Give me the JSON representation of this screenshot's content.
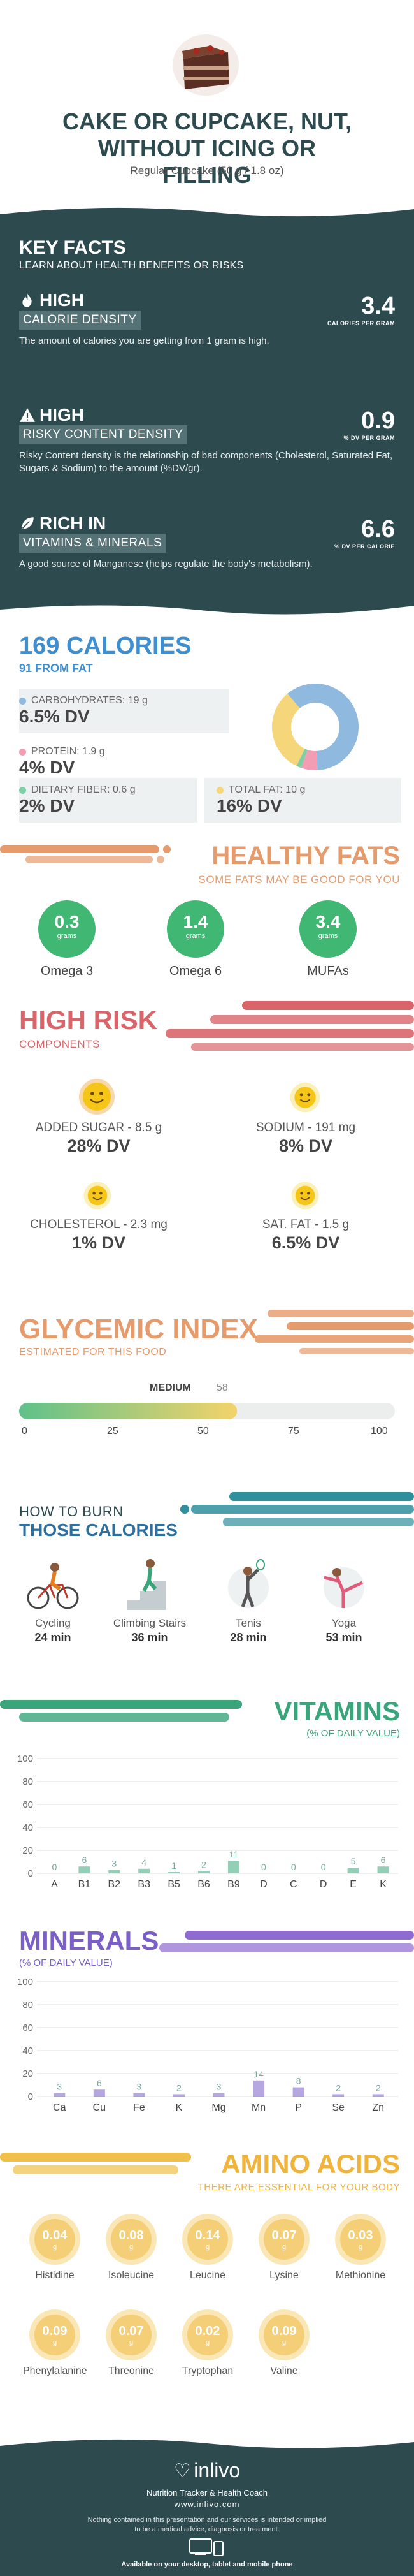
{
  "header": {
    "title_line1": "CAKE OR CUPCAKE, NUT,",
    "title_line2": "WITHOUT ICING OR",
    "title_line3": "FILLING",
    "serving": "Regular Cupcake (50 g / 1.8 oz)"
  },
  "key_facts": {
    "title": "KEY FACTS",
    "subtitle": "LEARN ABOUT HEALTH BENEFITS OR RISKS",
    "items": [
      {
        "level": "HIGH",
        "label": "CALORIE DENSITY",
        "value": "3.4",
        "unit": "CALORIES PER GRAM",
        "desc": "The amount of calories you are getting from 1 gram is high."
      },
      {
        "level": "HIGH",
        "label": "RISKY CONTENT DENSITY",
        "value": "0.9",
        "unit": "% DV PER GRAM",
        "desc": "Risky Content density is the relationship of bad components (Cholesterol, Saturated Fat, Sugars & Sodium) to the amount (%DV/gr)."
      },
      {
        "level": "RICH  IN",
        "label": "VITAMINS & MINERALS",
        "value": "6.6",
        "unit": "% DV PER CALORIE",
        "desc": "A good source of Manganese (helps regulate the body's metabolism)."
      }
    ]
  },
  "calories": {
    "title": "169 CALORIES",
    "subtitle": "91 FROM FAT",
    "nutrients": [
      {
        "label": "CARBOHYDRATES: 19 g",
        "dv": "6.5% DV",
        "color": "#8fb9de"
      },
      {
        "label": "PROTEIN: 1.9 g",
        "dv": "4% DV",
        "color": "#f29db4"
      },
      {
        "label": "DIETARY FIBER: 0.6 g",
        "dv": "2% DV",
        "color": "#7fcfa6"
      },
      {
        "label": "TOTAL FAT: 10 g",
        "dv": "16% DV",
        "color": "#f5d67a"
      }
    ],
    "donut": [
      {
        "name": "carbs",
        "value": 19,
        "color": "#8fb9de"
      },
      {
        "name": "protein",
        "value": 1.9,
        "color": "#f29db4"
      },
      {
        "name": "fiber",
        "value": 0.6,
        "color": "#7fcfa6"
      },
      {
        "name": "fat",
        "value": 10,
        "color": "#f5d67a"
      }
    ]
  },
  "fats": {
    "title": "HEALTHY FATS",
    "subtitle": "SOME FATS MAY BE GOOD FOR YOU",
    "items": [
      {
        "value": "0.3",
        "unit": "grams",
        "name": "Omega 3"
      },
      {
        "value": "1.4",
        "unit": "grams",
        "name": "Omega 6"
      },
      {
        "value": "3.4",
        "unit": "grams",
        "name": "MUFAs"
      }
    ]
  },
  "risk": {
    "title": "HIGH RISK",
    "subtitle": "COMPONENTS",
    "items": [
      {
        "label": "ADDED SUGAR - 8.5 g",
        "dv": "28% DV"
      },
      {
        "label": "SODIUM - 191 mg",
        "dv": "8% DV"
      },
      {
        "label": "CHOLESTEROL - 2.3 mg",
        "dv": "1% DV"
      },
      {
        "label": "SAT. FAT - 1.5 g",
        "dv": "6.5% DV"
      }
    ]
  },
  "glycemic": {
    "title": "GLYCEMIC INDEX",
    "subtitle": "ESTIMATED FOR THIS FOOD",
    "level": "MEDIUM",
    "value": "58",
    "value_num": 58,
    "ticks": [
      "0",
      "25",
      "50",
      "75",
      "100"
    ]
  },
  "burn": {
    "title_line1": "HOW TO BURN",
    "title_line2": "THOSE CALORIES",
    "activities": [
      {
        "name": "Cycling",
        "time": "24 min",
        "icon": "cycling-icon"
      },
      {
        "name": "Climbing Stairs",
        "time": "36 min",
        "icon": "stairs-icon"
      },
      {
        "name": "Tenis",
        "time": "28 min",
        "icon": "tennis-icon"
      },
      {
        "name": "Yoga",
        "time": "53 min",
        "icon": "yoga-icon"
      }
    ]
  },
  "vitamins": {
    "title": "VITAMINS",
    "subtitle": "(% OF DAILY VALUE)",
    "color": "#7b5fc9"
  },
  "minerals": {
    "title": "MINERALS",
    "subtitle": "(% OF DAILY VALUE)",
    "color": "#7b5fc9"
  },
  "chart_data": [
    {
      "type": "bar",
      "title": "VITAMINS",
      "subtitle": "(% OF DAILY VALUE)",
      "categories": [
        "A",
        "B1",
        "B2",
        "B3",
        "B5",
        "B6",
        "B9",
        "D",
        "C",
        "D",
        "E",
        "K"
      ],
      "values": [
        0,
        6,
        3,
        4,
        1,
        2,
        11,
        0,
        0,
        0,
        5,
        6
      ],
      "yticks": [
        "0",
        "20",
        "40",
        "60",
        "80",
        "100"
      ],
      "ylim": [
        0,
        100
      ],
      "grid": true
    },
    {
      "type": "bar",
      "title": "MINERALS",
      "subtitle": "(% OF DAILY VALUE)",
      "categories": [
        "Ca",
        "Cu",
        "Fe",
        "K",
        "Mg",
        "Mn",
        "P",
        "Se",
        "Zn"
      ],
      "values": [
        3,
        6,
        3,
        2,
        3,
        14,
        8,
        2,
        2
      ],
      "yticks": [
        "0",
        "20",
        "40",
        "60",
        "80",
        "100"
      ],
      "ylim": [
        0,
        100
      ],
      "grid": true
    }
  ],
  "amino": {
    "title": "AMINO ACIDS",
    "subtitle": "THERE ARE ESSENTIAL FOR YOUR BODY",
    "items": [
      {
        "value": "0.04",
        "name": "Histidine"
      },
      {
        "value": "0.08",
        "name": "Isoleucine"
      },
      {
        "value": "0.14",
        "name": "Leucine"
      },
      {
        "value": "0.07",
        "name": "Lysine"
      },
      {
        "value": "0.03",
        "name": "Methionine"
      },
      {
        "value": "0.09",
        "name": "Phenylalanine"
      },
      {
        "value": "0.07",
        "name": "Threonine"
      },
      {
        "value": "0.02",
        "name": "Tryptophan"
      },
      {
        "value": "0.09",
        "name": "Valine"
      }
    ],
    "unit": "g"
  },
  "footer": {
    "brand": "inlivo",
    "tagline": "Nutrition Tracker & Health Coach",
    "url": "www.inlivo.com",
    "disclaimer_line1": "Nothing contained in this presentation and our services is intended or implied",
    "disclaimer_line2": "to be a medical advice, diagnosis or treatment.",
    "available": "Available on your desktop, tablet and mobile phone"
  }
}
